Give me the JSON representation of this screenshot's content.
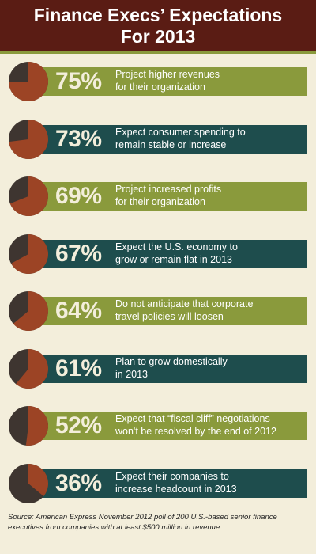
{
  "title": "Finance Execs’ Expectations\nFor 2013",
  "colors": {
    "header_bg": "#5a1c14",
    "green_band": "#8a9a3c",
    "teal_band": "#1e4d4d",
    "pie_dark": "#3e3530",
    "pie_fill": "#9c4425",
    "background": "#f3eedb"
  },
  "chart_data": {
    "type": "pie",
    "items": [
      {
        "value": 75,
        "label": "75%",
        "text": "Project higher revenues\nfor their organization",
        "band": "green"
      },
      {
        "value": 73,
        "label": "73%",
        "text": "Expect consumer spending to\nremain stable or increase",
        "band": "teal"
      },
      {
        "value": 69,
        "label": "69%",
        "text": "Project increased profits\nfor their organization",
        "band": "green"
      },
      {
        "value": 67,
        "label": "67%",
        "text": "Expect the U.S. economy to\ngrow or remain flat in 2013",
        "band": "teal"
      },
      {
        "value": 64,
        "label": "64%",
        "text": "Do not anticipate that corporate\ntravel policies will loosen",
        "band": "green"
      },
      {
        "value": 61,
        "label": "61%",
        "text": "Plan to grow domestically\nin 2013",
        "band": "teal"
      },
      {
        "value": 52,
        "label": "52%",
        "text": "Expect that “fiscal cliff” negotiations\nwon't be resolved by the end of 2012",
        "band": "green"
      },
      {
        "value": 36,
        "label": "36%",
        "text": "Expect their companies to\nincrease headcount in 2013",
        "band": "teal"
      }
    ]
  },
  "source": "Source: American Express November 2012 poll of 200 U.S.-based senior finance executives from companies with at least $500 million in revenue"
}
